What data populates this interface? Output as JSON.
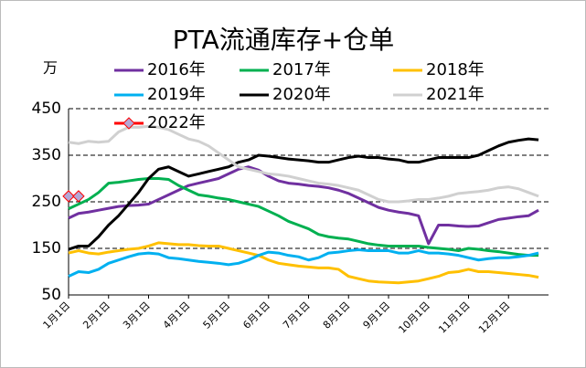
{
  "chart_data": {
    "type": "line",
    "title": "PTA流通库存+仓单",
    "y_unit": "万",
    "categories": [
      "1月1日",
      null,
      null,
      null,
      "2月1日",
      null,
      null,
      null,
      "3月1日",
      null,
      null,
      null,
      "4月1日",
      null,
      null,
      null,
      "5月1日",
      null,
      null,
      null,
      "6月1日",
      null,
      null,
      null,
      "7月1日",
      null,
      null,
      null,
      "8月1日",
      null,
      null,
      null,
      "9月1日",
      null,
      null,
      null,
      "10月1日",
      null,
      null,
      null,
      "11月1日",
      null,
      null,
      null,
      "12月1日",
      null,
      null,
      null
    ],
    "ylim": [
      50,
      450
    ],
    "yticks": [
      50,
      150,
      250,
      350,
      450
    ],
    "grid": true,
    "series": [
      {
        "name": "2016年",
        "color": "#7030a0",
        "values": [
          215,
          225,
          228,
          232,
          236,
          240,
          242,
          243,
          245,
          255,
          265,
          275,
          285,
          290,
          295,
          300,
          310,
          320,
          325,
          318,
          305,
          295,
          290,
          288,
          285,
          283,
          280,
          275,
          268,
          258,
          248,
          238,
          232,
          228,
          225,
          220,
          160,
          200,
          200,
          198,
          197,
          198,
          205,
          212,
          215,
          218,
          220,
          232
        ]
      },
      {
        "name": "2017年",
        "color": "#00b050",
        "values": [
          235,
          245,
          255,
          270,
          290,
          292,
          295,
          298,
          300,
          300,
          298,
          285,
          275,
          265,
          262,
          258,
          255,
          250,
          245,
          240,
          230,
          220,
          208,
          200,
          192,
          180,
          175,
          172,
          170,
          165,
          160,
          157,
          155,
          155,
          155,
          155,
          152,
          150,
          148,
          145,
          150,
          148,
          145,
          143,
          140,
          137,
          135,
          135
        ]
      },
      {
        "name": "2018年",
        "color": "#ffc000",
        "values": [
          140,
          145,
          140,
          138,
          142,
          145,
          148,
          150,
          155,
          162,
          160,
          158,
          158,
          156,
          155,
          155,
          150,
          145,
          140,
          135,
          125,
          118,
          115,
          112,
          110,
          108,
          108,
          105,
          90,
          85,
          80,
          78,
          77,
          76,
          78,
          80,
          85,
          90,
          98,
          100,
          105,
          100,
          100,
          98,
          96,
          94,
          92,
          88
        ]
      },
      {
        "name": "2019年",
        "color": "#00b0f0",
        "values": [
          90,
          100,
          98,
          105,
          118,
          125,
          132,
          138,
          140,
          138,
          130,
          128,
          125,
          122,
          120,
          118,
          115,
          118,
          125,
          135,
          142,
          140,
          135,
          132,
          125,
          130,
          140,
          142,
          145,
          147,
          145,
          145,
          145,
          140,
          140,
          145,
          140,
          140,
          138,
          135,
          130,
          125,
          128,
          130,
          130,
          132,
          135,
          140
        ]
      },
      {
        "name": "2020年",
        "color": "#000000",
        "values": [
          148,
          155,
          155,
          175,
          200,
          220,
          245,
          270,
          300,
          320,
          325,
          315,
          305,
          310,
          315,
          320,
          325,
          335,
          340,
          350,
          348,
          345,
          342,
          340,
          338,
          335,
          335,
          340,
          345,
          348,
          345,
          345,
          342,
          340,
          335,
          335,
          340,
          345,
          345,
          345,
          345,
          350,
          360,
          370,
          378,
          382,
          385,
          383
        ]
      },
      {
        "name": "2021年",
        "color": "#d0d0d0",
        "values": [
          378,
          375,
          380,
          378,
          380,
          400,
          410,
          410,
          412,
          410,
          405,
          395,
          385,
          380,
          370,
          355,
          340,
          325,
          320,
          315,
          310,
          308,
          305,
          300,
          295,
          290,
          288,
          285,
          280,
          275,
          265,
          255,
          250,
          250,
          252,
          255,
          255,
          258,
          262,
          268,
          270,
          272,
          275,
          280,
          282,
          278,
          270,
          262
        ]
      },
      {
        "name": "2022年",
        "color": "#ff0000",
        "marker": "diamond",
        "marker_color": "#b4a7d6",
        "values": [
          262,
          262,
          null,
          null,
          null,
          null,
          null,
          null,
          null,
          null,
          null,
          null,
          null,
          null,
          null,
          null,
          null,
          null,
          null,
          null,
          null,
          null,
          null,
          null,
          null,
          null,
          null,
          null,
          null,
          null,
          null,
          null,
          null,
          null,
          null,
          null,
          null,
          null,
          null,
          null,
          null,
          null,
          null,
          null,
          null,
          null,
          null,
          null
        ]
      }
    ]
  }
}
